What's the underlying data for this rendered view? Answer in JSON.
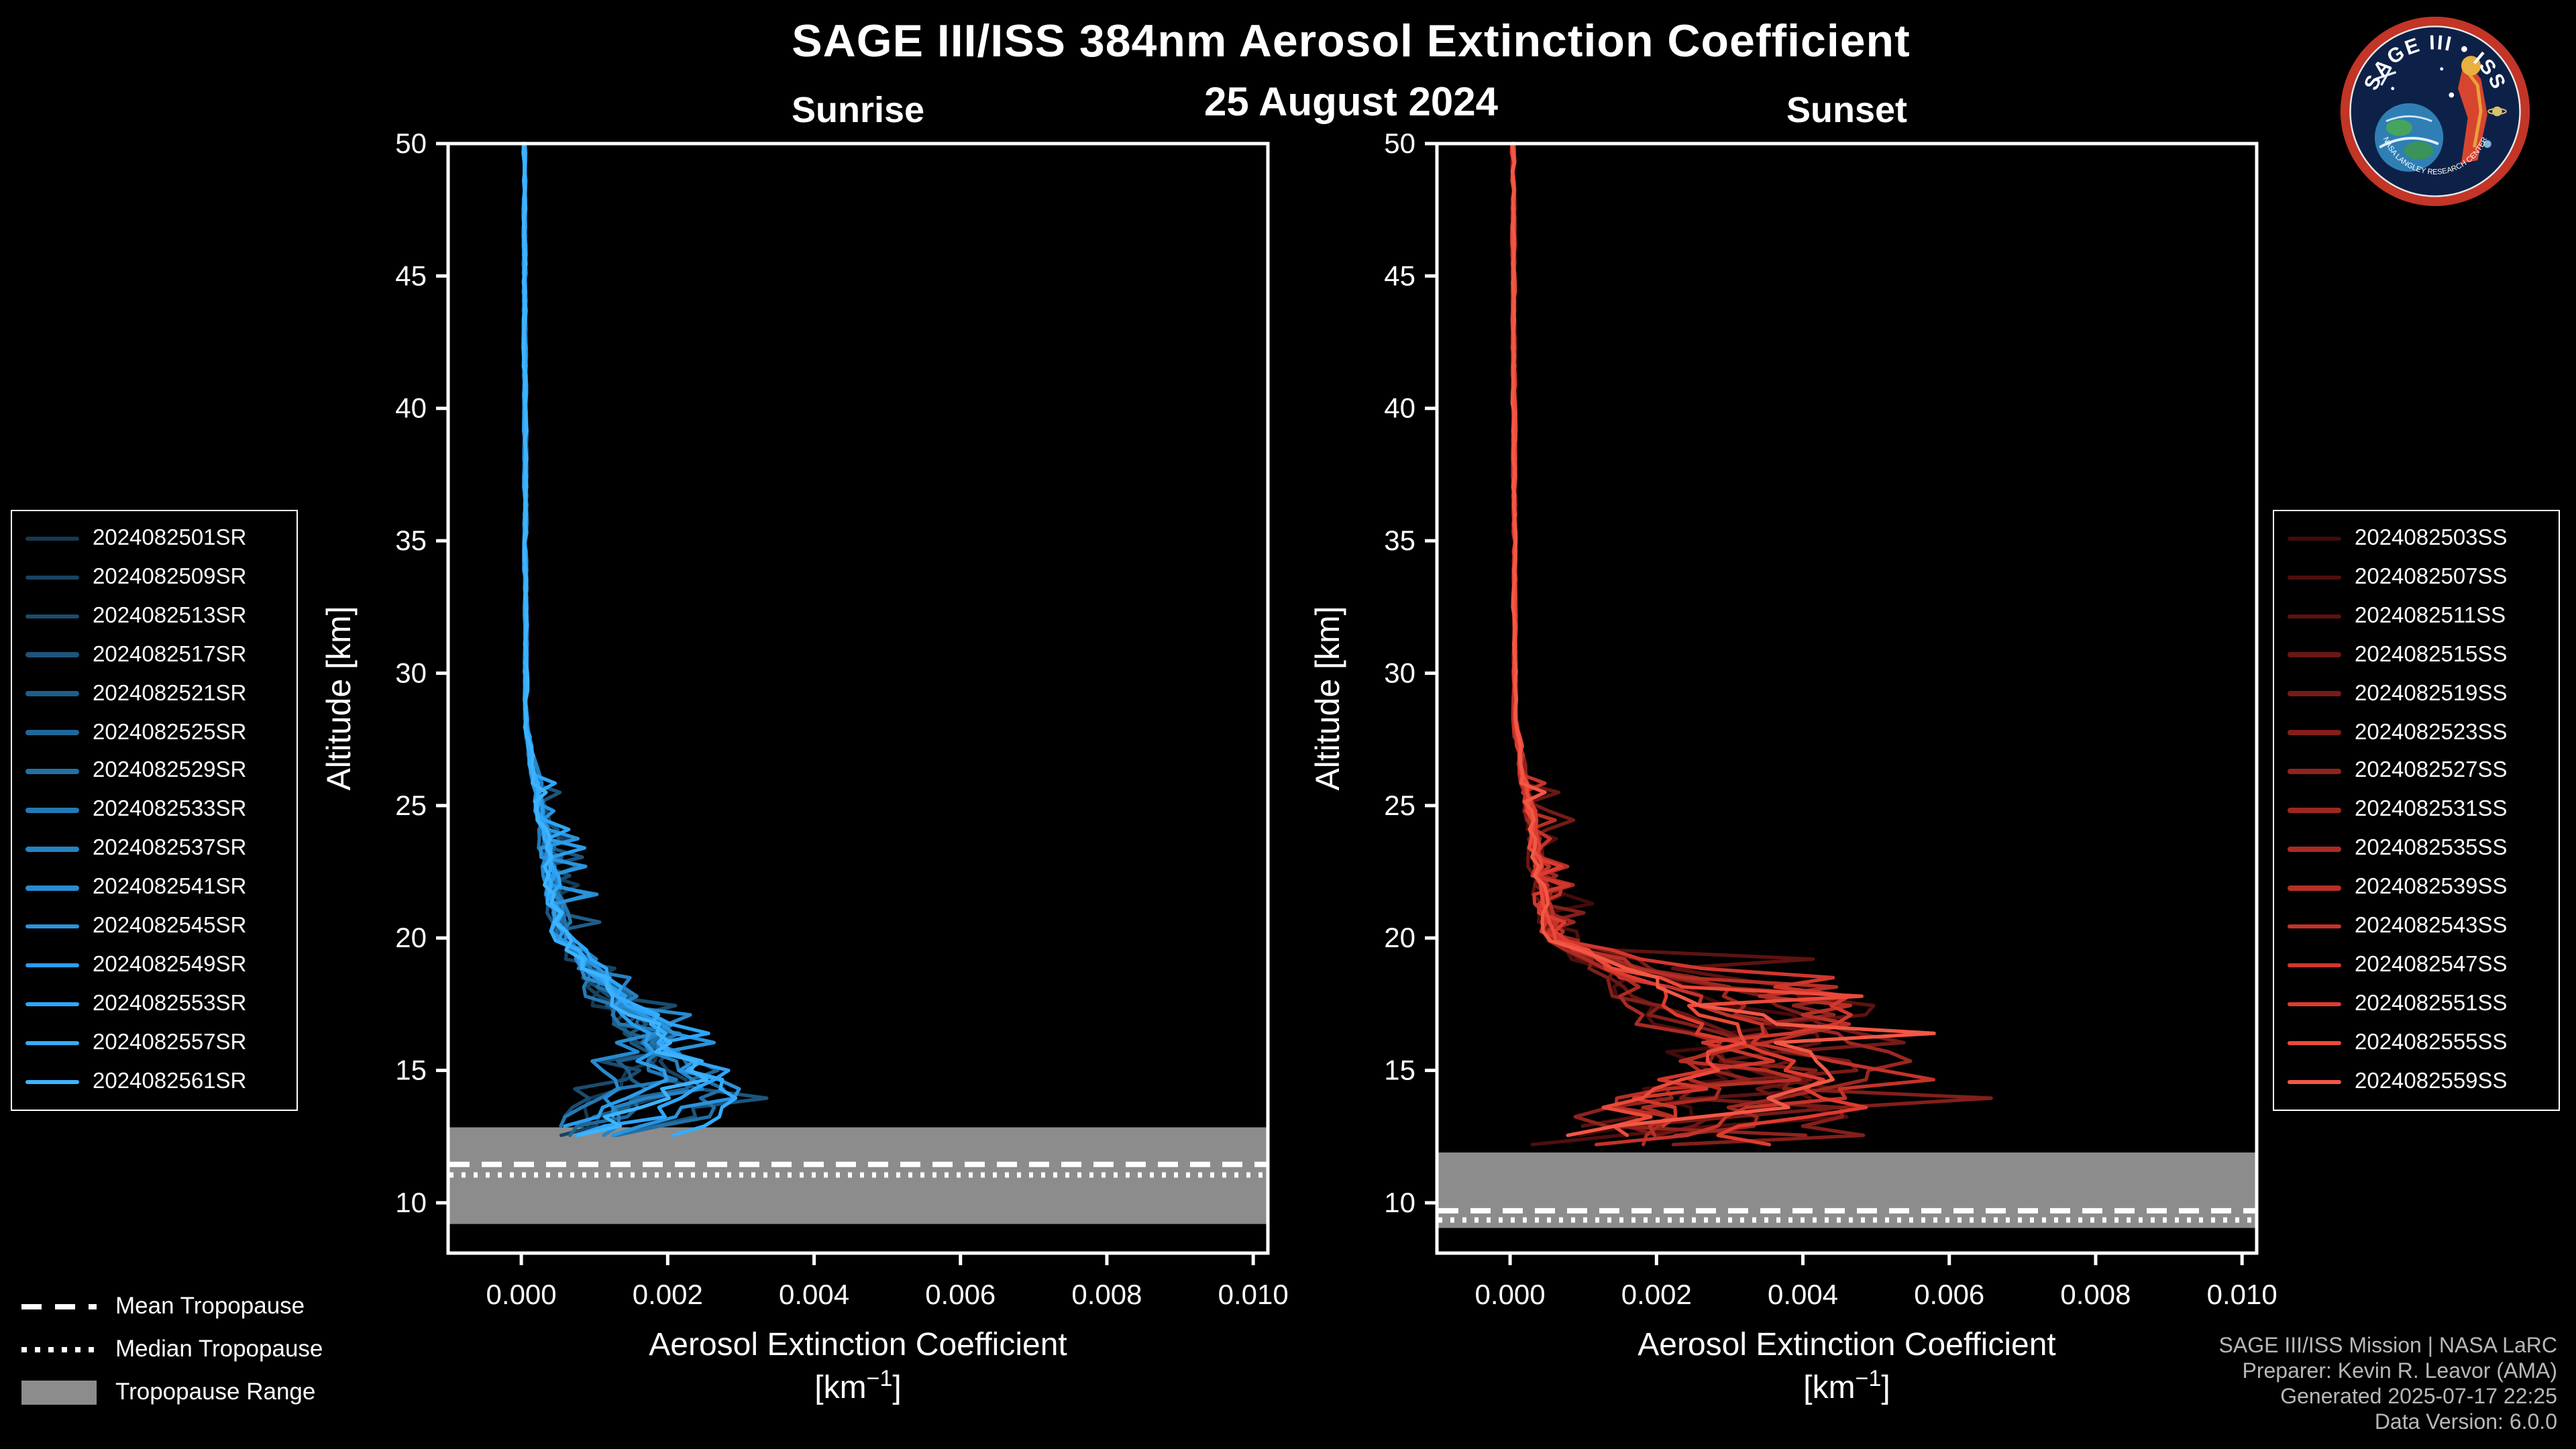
{
  "header": {
    "title": "SAGE III/ISS 384nm Aerosol Extinction Coefficient",
    "date": "25 August 2024"
  },
  "logo": {
    "title": "SAGE III • ISS",
    "subtext": "NASA LANGLEY RESEARCH CENTER"
  },
  "trop_legend": {
    "mean": "Mean Tropopause",
    "median": "Median Tropopause",
    "range": "Tropopause Range"
  },
  "footer": {
    "line1": "SAGE III/ISS Mission | NASA LaRC",
    "line2": "Preparer: Kevin R. Leavor (AMA)",
    "line3": "Generated 2025-07-17 22:25",
    "line4": "Data Version: 6.0.0"
  },
  "chart_data": [
    {
      "type": "line",
      "id": "sunrise",
      "title": "Sunrise",
      "xlabel": "Aerosol Extinction Coefficient",
      "xlabel_units": {
        "pre": "[km",
        "sup": "−1",
        "post": "]"
      },
      "ylabel": "Altitude [km]",
      "xlim": [
        -0.001,
        0.0102
      ],
      "ylim": [
        8.1,
        50
      ],
      "xticks": [
        0.0,
        0.002,
        0.004,
        0.006,
        0.008,
        0.01
      ],
      "xtick_labels": [
        "0.000",
        "0.002",
        "0.004",
        "0.006",
        "0.008",
        "0.010"
      ],
      "yticks": [
        10,
        15,
        20,
        25,
        30,
        35,
        40,
        45,
        50
      ],
      "grid": false,
      "band_color": "#8c8c8c",
      "tropopause": {
        "mean_km": 11.45,
        "median_km": 11.05,
        "range_km": [
          9.2,
          12.85
        ]
      },
      "noise": {
        "mid": 0.00042,
        "low": 0.0008
      },
      "series": [
        {
          "label": "2024082501SR",
          "color": "#163a52",
          "seed": 11,
          "peak_alt": 15.2,
          "peak_val": 0.0019,
          "bottom_alt": 12.8
        },
        {
          "label": "2024082509SR",
          "color": "#184360",
          "seed": 23,
          "peak_alt": 14.1,
          "peak_val": 0.0022,
          "bottom_alt": 12.5
        },
        {
          "label": "2024082513SR",
          "color": "#1a4c6e",
          "seed": 35,
          "peak_alt": 16.0,
          "peak_val": 0.0017,
          "bottom_alt": 12.9
        },
        {
          "label": "2024082517SR",
          "color": "#1c557c",
          "seed": 47,
          "peak_alt": 13.4,
          "peak_val": 0.0026,
          "bottom_alt": 12.3
        },
        {
          "label": "2024082521SR",
          "color": "#1e5e8a",
          "seed": 59,
          "peak_alt": 15.6,
          "peak_val": 0.0021,
          "bottom_alt": 12.6
        },
        {
          "label": "2024082525SR",
          "color": "#206798",
          "seed": 71,
          "peak_alt": 14.5,
          "peak_val": 0.0024,
          "bottom_alt": 12.4
        },
        {
          "label": "2024082529SR",
          "color": "#2270a6",
          "seed": 83,
          "peak_alt": 13.0,
          "peak_val": 0.0028,
          "bottom_alt": 12.2
        },
        {
          "label": "2024082533SR",
          "color": "#2479b4",
          "seed": 95,
          "peak_alt": 15.0,
          "peak_val": 0.002,
          "bottom_alt": 12.7
        },
        {
          "label": "2024082537SR",
          "color": "#2682c2",
          "seed": 107,
          "peak_alt": 14.2,
          "peak_val": 0.0025,
          "bottom_alt": 12.4
        },
        {
          "label": "2024082541SR",
          "color": "#288bd0",
          "seed": 119,
          "peak_alt": 16.3,
          "peak_val": 0.0018,
          "bottom_alt": 13.0
        },
        {
          "label": "2024082545SR",
          "color": "#2a94de",
          "seed": 131,
          "peak_alt": 13.7,
          "peak_val": 0.0029,
          "bottom_alt": 12.3
        },
        {
          "label": "2024082549SR",
          "color": "#2c9dec",
          "seed": 143,
          "peak_alt": 15.4,
          "peak_val": 0.0022,
          "bottom_alt": 12.6
        },
        {
          "label": "2024082553SR",
          "color": "#2ea6fa",
          "seed": 155,
          "peak_alt": 14.0,
          "peak_val": 0.0027,
          "bottom_alt": 12.4
        },
        {
          "label": "2024082557SR",
          "color": "#35acff",
          "seed": 167,
          "peak_alt": 13.2,
          "peak_val": 0.0031,
          "bottom_alt": 12.2
        },
        {
          "label": "2024082561SR",
          "color": "#3eb3ff",
          "seed": 179,
          "peak_alt": 14.7,
          "peak_val": 0.0024,
          "bottom_alt": 12.5
        }
      ]
    },
    {
      "type": "line",
      "id": "sunset",
      "title": "Sunset",
      "xlabel": "Aerosol Extinction Coefficient",
      "xlabel_units": {
        "pre": "[km",
        "sup": "−1",
        "post": "]"
      },
      "ylabel": "Altitude [km]",
      "xlim": [
        -0.001,
        0.0102
      ],
      "ylim": [
        8.1,
        50
      ],
      "xticks": [
        0.0,
        0.002,
        0.004,
        0.006,
        0.008,
        0.01
      ],
      "xtick_labels": [
        "0.000",
        "0.002",
        "0.004",
        "0.006",
        "0.008",
        "0.010"
      ],
      "yticks": [
        10,
        15,
        20,
        25,
        30,
        35,
        40,
        45,
        50
      ],
      "grid": false,
      "band_color": "#8c8c8c",
      "tropopause": {
        "mean_km": 9.7,
        "median_km": 9.35,
        "range_km": [
          9.05,
          11.9
        ]
      },
      "noise": {
        "mid": 0.0009,
        "low": 0.0016
      },
      "series": [
        {
          "label": "2024082503SS",
          "color": "#420b0b",
          "seed": 211,
          "peak_alt": 16.8,
          "peak_val": 0.0036,
          "bottom_alt": 12.4
        },
        {
          "label": "2024082507SS",
          "color": "#4f0f0e",
          "seed": 223,
          "peak_alt": 13.2,
          "peak_val": 0.0042,
          "bottom_alt": 12.1
        },
        {
          "label": "2024082511SS",
          "color": "#5c1311",
          "seed": 235,
          "peak_alt": 17.5,
          "peak_val": 0.0048,
          "bottom_alt": 12.6
        },
        {
          "label": "2024082515SS",
          "color": "#691714",
          "seed": 247,
          "peak_alt": 14.6,
          "peak_val": 0.0038,
          "bottom_alt": 12.2
        },
        {
          "label": "2024082519SS",
          "color": "#761b17",
          "seed": 259,
          "peak_alt": 16.0,
          "peak_val": 0.0052,
          "bottom_alt": 12.4
        },
        {
          "label": "2024082523SS",
          "color": "#831f1a",
          "seed": 271,
          "peak_alt": 12.8,
          "peak_val": 0.0045,
          "bottom_alt": 12.0
        },
        {
          "label": "2024082527SS",
          "color": "#90231d",
          "seed": 283,
          "peak_alt": 17.2,
          "peak_val": 0.004,
          "bottom_alt": 12.5
        },
        {
          "label": "2024082531SS",
          "color": "#9d2720",
          "seed": 295,
          "peak_alt": 15.2,
          "peak_val": 0.005,
          "bottom_alt": 12.2
        },
        {
          "label": "2024082535SS",
          "color": "#aa2b23",
          "seed": 307,
          "peak_alt": 13.8,
          "peak_val": 0.0035,
          "bottom_alt": 12.1
        },
        {
          "label": "2024082539SS",
          "color": "#b72f26",
          "seed": 319,
          "peak_alt": 16.5,
          "peak_val": 0.0046,
          "bottom_alt": 12.4
        },
        {
          "label": "2024082543SS",
          "color": "#c43329",
          "seed": 331,
          "peak_alt": 14.2,
          "peak_val": 0.0053,
          "bottom_alt": 12.1
        },
        {
          "label": "2024082547SS",
          "color": "#d1372c",
          "seed": 343,
          "peak_alt": 17.8,
          "peak_val": 0.0043,
          "bottom_alt": 12.6
        },
        {
          "label": "2024082551SS",
          "color": "#de3b2f",
          "seed": 355,
          "peak_alt": 13.5,
          "peak_val": 0.0049,
          "bottom_alt": 12.0
        },
        {
          "label": "2024082555SS",
          "color": "#eb4a3a",
          "seed": 367,
          "peak_alt": 15.8,
          "peak_val": 0.0041,
          "bottom_alt": 12.3
        },
        {
          "label": "2024082559SS",
          "color": "#f25845",
          "seed": 379,
          "peak_alt": 14.9,
          "peak_val": 0.0047,
          "bottom_alt": 12.2
        }
      ]
    }
  ]
}
